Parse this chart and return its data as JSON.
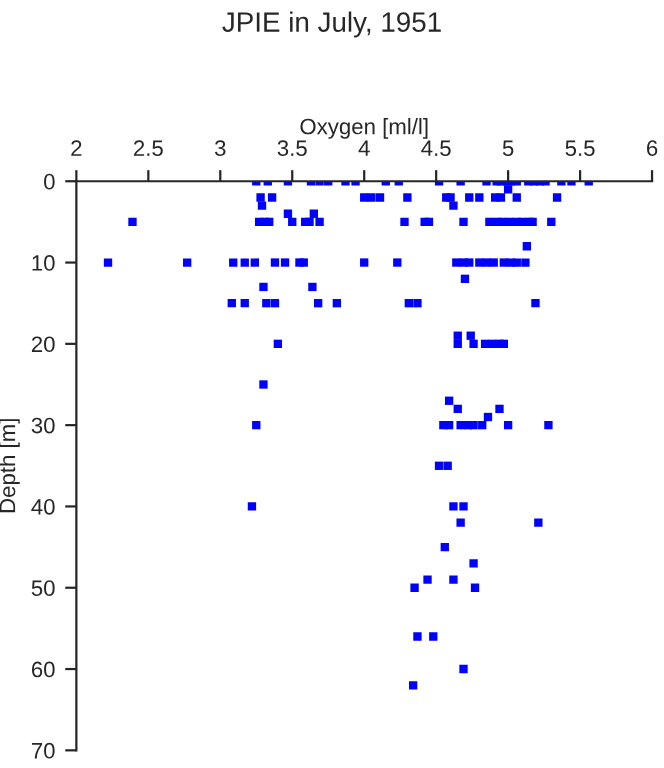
{
  "chart_data": {
    "type": "scatter",
    "title": "JPIE in July, 1951",
    "xlabel": "Oxygen [ml/l]",
    "ylabel": "Depth [m]",
    "x": [
      3.25,
      3.33,
      3.47,
      3.63,
      3.69,
      3.75,
      3.87,
      3.94,
      4.15,
      4.24,
      4.52,
      4.67,
      4.85,
      4.92,
      4.95,
      4.99,
      5.02,
      5.06,
      5.14,
      5.18,
      5.22,
      5.26,
      5.37,
      5.44,
      5.56,
      5.0,
      3.28,
      3.36,
      4.0,
      4.05,
      4.11,
      4.3,
      4.57,
      4.6,
      4.73,
      4.8,
      4.91,
      4.95,
      5.06,
      5.34,
      3.29,
      4.62,
      3.47,
      3.65,
      2.39,
      3.27,
      3.31,
      3.34,
      3.5,
      3.59,
      3.62,
      3.69,
      4.28,
      4.42,
      4.45,
      4.69,
      4.87,
      4.92,
      4.96,
      5.01,
      5.06,
      5.1,
      5.15,
      5.17,
      5.3,
      5.13,
      2.22,
      2.77,
      3.09,
      3.17,
      3.24,
      3.38,
      3.45,
      3.55,
      3.58,
      4.0,
      4.23,
      4.64,
      4.69,
      4.73,
      4.8,
      4.85,
      4.9,
      4.97,
      5.02,
      5.06,
      5.12,
      4.7,
      3.3,
      3.64,
      3.08,
      3.17,
      3.32,
      3.38,
      3.68,
      3.81,
      4.31,
      4.37,
      5.19,
      4.65,
      4.74,
      3.4,
      4.65,
      4.76,
      4.84,
      4.89,
      4.94,
      4.97,
      3.3,
      4.59,
      4.65,
      4.94,
      4.86,
      3.25,
      4.55,
      4.59,
      4.67,
      4.72,
      4.76,
      4.82,
      5.0,
      5.28,
      4.52,
      4.58,
      3.22,
      4.62,
      4.69,
      4.67,
      5.21,
      4.56,
      4.76,
      4.44,
      4.62,
      4.35,
      4.77,
      4.37,
      4.48,
      4.69,
      4.34
    ],
    "values": [
      0,
      0,
      0,
      0,
      0,
      0,
      0,
      0,
      0,
      0,
      0,
      0,
      0,
      0,
      0,
      0,
      0,
      0,
      0,
      0,
      0,
      0,
      0,
      0,
      0,
      1,
      2,
      2,
      2,
      2,
      2,
      2,
      2,
      2,
      2,
      2,
      2,
      2,
      2,
      2,
      3,
      3,
      4,
      4,
      5,
      5,
      5,
      5,
      5,
      5,
      5,
      5,
      5,
      5,
      5,
      5,
      5,
      5,
      5,
      5,
      5,
      5,
      5,
      5,
      5,
      8,
      10,
      10,
      10,
      10,
      10,
      10,
      10,
      10,
      10,
      10,
      10,
      10,
      10,
      10,
      10,
      10,
      10,
      10,
      10,
      10,
      10,
      12,
      13,
      13,
      15,
      15,
      15,
      15,
      15,
      15,
      15,
      15,
      15,
      19,
      19,
      20,
      20,
      20,
      20,
      20,
      20,
      20,
      25,
      27,
      28,
      28,
      29,
      30,
      30,
      30,
      30,
      30,
      30,
      30,
      30,
      30,
      35,
      35,
      40,
      40,
      40,
      42,
      42,
      45,
      47,
      49,
      49,
      50,
      50,
      56,
      56,
      60,
      62
    ],
    "color": "#0000ff",
    "marker": "square",
    "xlim": [
      2,
      6
    ],
    "xticks": [
      2,
      2.5,
      3,
      3.5,
      4,
      4.5,
      5,
      5.5,
      6
    ],
    "ylim": [
      70,
      0
    ],
    "yticks": [
      0,
      10,
      20,
      30,
      40,
      50,
      60,
      70
    ],
    "grid": false,
    "legend": false
  }
}
